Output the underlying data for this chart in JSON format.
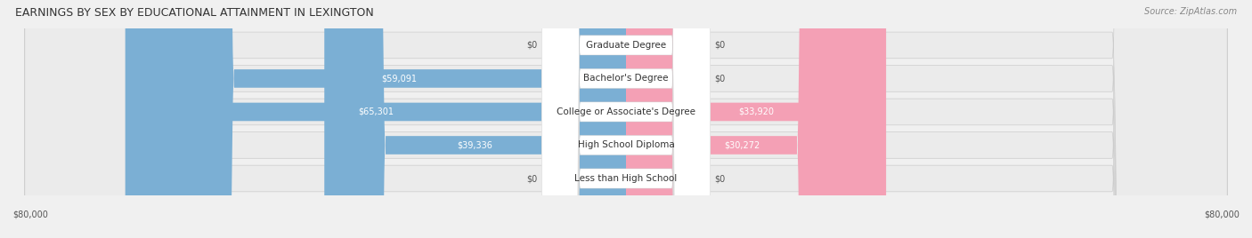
{
  "title": "EARNINGS BY SEX BY EDUCATIONAL ATTAINMENT IN LEXINGTON",
  "source": "Source: ZipAtlas.com",
  "categories": [
    "Less than High School",
    "High School Diploma",
    "College or Associate's Degree",
    "Bachelor's Degree",
    "Graduate Degree"
  ],
  "male_values": [
    0,
    39336,
    65301,
    59091,
    0
  ],
  "female_values": [
    0,
    30272,
    33920,
    0,
    0
  ],
  "male_color": "#7bafd4",
  "male_color_dark": "#5b9dc8",
  "female_color": "#f4a0b5",
  "female_color_dark": "#f08098",
  "max_value": 80000,
  "background_color": "#f0f0f0",
  "row_background": "#e8e8e8",
  "label_bg": "#ffffff",
  "title_fontsize": 9,
  "source_fontsize": 7,
  "bar_label_fontsize": 7,
  "category_fontsize": 7.5,
  "axis_label_fontsize": 7,
  "legend_fontsize": 7
}
